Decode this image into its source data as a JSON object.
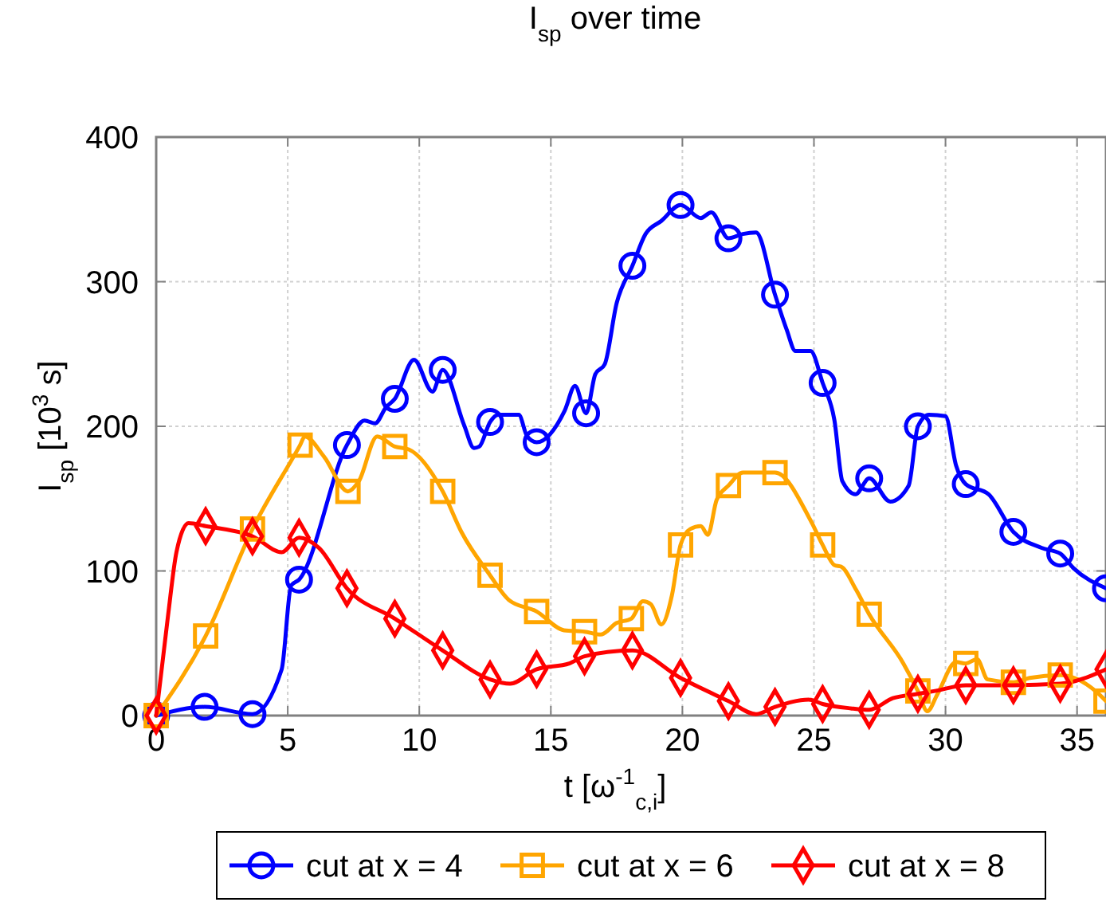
{
  "chart_data": {
    "type": "line",
    "title": "I$_{sp}$ over time",
    "xlabel": "t [ω$^{-1}$$_{c,i}$]",
    "ylabel": "I$_{sp}$  [10$^{3}$ s]",
    "xlim": [
      0,
      36.1
    ],
    "ylim": [
      0,
      400
    ],
    "xticks": [
      0,
      5,
      10,
      15,
      20,
      25,
      30,
      35
    ],
    "yticks": [
      0,
      100,
      200,
      300,
      400
    ],
    "grid": true,
    "legend": "bottom",
    "series": [
      {
        "color": "#0000ff",
        "marker": "none",
        "x": [
          0,
          1.84,
          3.66,
          4.77,
          5.13,
          5.43,
          7.25,
          7.92,
          8.32,
          8.73,
          9.07,
          9.8,
          10.5,
          10.89,
          11.7,
          12.08,
          12.28,
          12.69,
          13.0,
          13.78,
          14.1,
          14.46,
          15.53,
          15.92,
          16.34,
          16.69,
          17.05,
          17.5,
          18.1,
          18.6,
          19.2,
          19.93,
          20.7,
          21.1,
          21.75,
          22.3,
          22.8,
          23.52,
          23.96,
          24.3,
          24.87,
          25.33,
          25.78,
          26.08,
          26.58,
          27.1,
          27.9,
          28.6,
          28.95,
          29.37,
          30.0,
          30.4,
          30.77,
          31.64,
          32.58,
          33.65,
          34.36,
          34.86,
          36.1
        ],
        "values": [
          0,
          6,
          1,
          32,
          90,
          94,
          187,
          204,
          202,
          213,
          219,
          246,
          224,
          239,
          201,
          185,
          186,
          203,
          208,
          208,
          193,
          189,
          211,
          228,
          209,
          236,
          243,
          285,
          311,
          333,
          342,
          353,
          344,
          348,
          330,
          333,
          334,
          291,
          267,
          252,
          252,
          230,
          204,
          162,
          153,
          164,
          148,
          159,
          200,
          208,
          207,
          173,
          160,
          153,
          127,
          116,
          112,
          102,
          88
        ]
      },
      {
        "color": "#ffa500",
        "marker": "none",
        "x": [
          0,
          1.88,
          3.66,
          5.47,
          5.65,
          6.38,
          7.29,
          7.7,
          8.4,
          9.07,
          9.6,
          10.89,
          11.6,
          12.69,
          13.4,
          14.46,
          15.5,
          16.28,
          16.9,
          17.5,
          18.06,
          18.5,
          18.8,
          19.2,
          19.6,
          19.93,
          20.3,
          20.7,
          20.97,
          21.3,
          21.75,
          22.3,
          23.52,
          24.87,
          25.33,
          25.78,
          26.03,
          26.6,
          27.1,
          28.4,
          28.95,
          29.31,
          29.7,
          30.4,
          30.77,
          31.2,
          31.6,
          32.58,
          33.2,
          34.36,
          35.7,
          36.1
        ],
        "values": [
          0,
          55,
          129,
          187,
          193,
          179,
          155,
          162,
          193,
          186,
          184,
          155,
          127,
          97,
          80,
          72,
          59,
          58,
          56,
          64,
          67,
          79,
          77,
          63,
          83,
          118,
          129,
          131,
          125,
          149,
          159,
          168,
          168,
          135,
          118,
          104,
          103,
          87,
          70,
          36,
          17,
          3,
          15,
          37,
          36,
          39,
          25,
          23,
          26,
          28,
          17,
          10
        ]
      },
      {
        "color": "#ff0000",
        "marker": "none",
        "x": [
          0,
          0.45,
          0.77,
          1.23,
          1.88,
          3.66,
          4.77,
          5.43,
          6.18,
          7.25,
          9.07,
          10.89,
          12.69,
          13.45,
          14.46,
          15.7,
          16.28,
          18.1,
          19.93,
          21.75,
          22.8,
          23.52,
          24.8,
          25.33,
          26.4,
          27.1,
          28.0,
          28.95,
          29.6,
          30.77,
          32.58,
          34.36,
          36.1
        ],
        "values": [
          0,
          69,
          113,
          133,
          131,
          124,
          113,
          123,
          116,
          88,
          67,
          45,
          25,
          22,
          32,
          36,
          41,
          45,
          26,
          10,
          1,
          6,
          11,
          8,
          5,
          4,
          12,
          15,
          17,
          21,
          21,
          22,
          32
        ]
      },
      {
        "type": "scatter",
        "name": "cut at x = 4",
        "color": "#0000ff",
        "marker": "circle",
        "x": [
          0,
          1.84,
          3.66,
          5.43,
          7.25,
          9.07,
          10.89,
          12.69,
          14.46,
          16.34,
          18.1,
          19.93,
          21.75,
          23.52,
          25.33,
          27.1,
          28.95,
          30.77,
          32.58,
          34.36,
          36.1
        ],
        "values": [
          0,
          6,
          1,
          94,
          187,
          219,
          239,
          203,
          189,
          209,
          311,
          353,
          330,
          291,
          230,
          164,
          200,
          160,
          127,
          112,
          88
        ]
      },
      {
        "type": "scatter",
        "name": "cut at x = 6",
        "color": "#ffa500",
        "marker": "square",
        "x": [
          0,
          1.88,
          3.66,
          5.47,
          7.29,
          9.07,
          10.89,
          12.69,
          14.46,
          16.28,
          18.06,
          19.93,
          21.75,
          23.52,
          25.33,
          27.1,
          28.95,
          30.77,
          32.58,
          34.36,
          36.1
        ],
        "values": [
          0,
          55,
          129,
          187,
          155,
          186,
          155,
          97,
          72,
          58,
          67,
          118,
          159,
          168,
          118,
          70,
          17,
          36,
          23,
          28,
          10
        ]
      },
      {
        "type": "scatter",
        "name": "cut at x = 8",
        "color": "#ff0000",
        "marker": "diamond",
        "x": [
          0,
          1.88,
          3.66,
          5.43,
          7.25,
          9.07,
          10.89,
          12.69,
          14.46,
          16.28,
          18.1,
          19.93,
          21.75,
          23.52,
          25.33,
          27.1,
          28.95,
          30.77,
          32.58,
          34.36,
          36.1
        ],
        "values": [
          0,
          131,
          124,
          123,
          88,
          67,
          45,
          25,
          32,
          41,
          45,
          26,
          10,
          6,
          8,
          4,
          15,
          21,
          21,
          22,
          32
        ]
      }
    ]
  }
}
